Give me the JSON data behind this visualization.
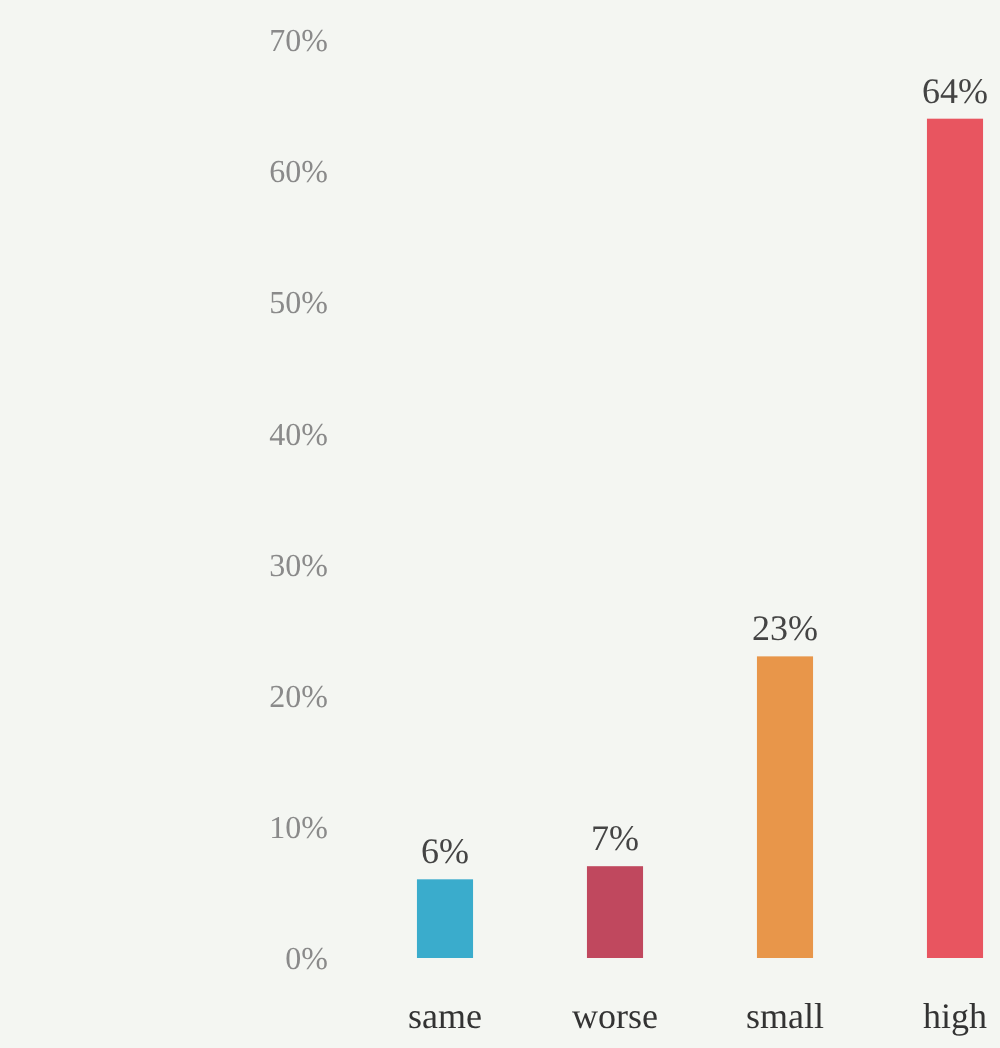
{
  "chart_data": {
    "type": "bar",
    "categories": [
      "same",
      "worse",
      "small",
      "high"
    ],
    "values": [
      6,
      7,
      23,
      64
    ],
    "colors": [
      "#3aaccc",
      "#c0485e",
      "#e8964a",
      "#e85560"
    ],
    "ylim": [
      0,
      70
    ],
    "yticks": [
      {
        "value": 0,
        "label": "0%"
      },
      {
        "value": 10,
        "label": "10%"
      },
      {
        "value": 20,
        "label": "20%"
      },
      {
        "value": 30,
        "label": "30%"
      },
      {
        "value": 40,
        "label": "40%"
      },
      {
        "value": 50,
        "label": "50%"
      },
      {
        "value": 60,
        "label": "60%"
      },
      {
        "value": 70,
        "label": "70%"
      }
    ],
    "value_labels": [
      "6%",
      "7%",
      "23%",
      "64%"
    ],
    "grid": false
  }
}
